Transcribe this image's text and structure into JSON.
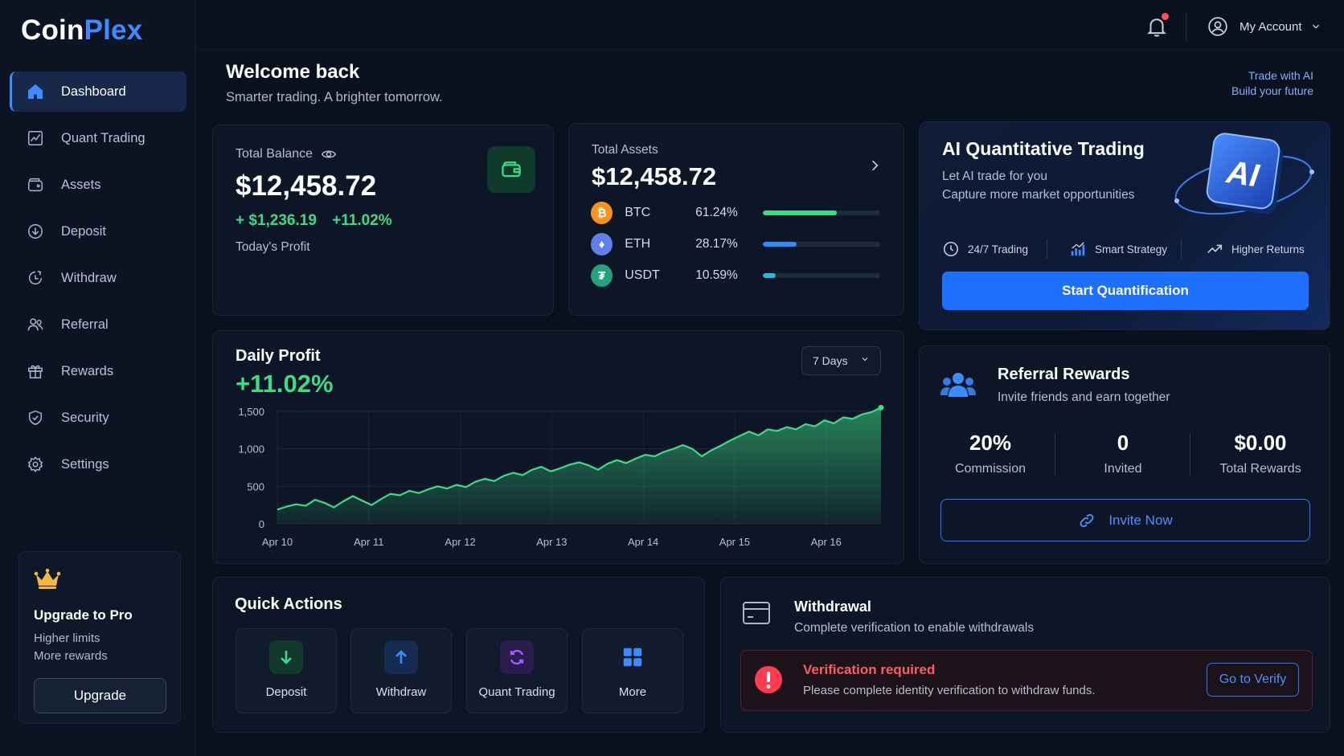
{
  "brand": {
    "name_part1": "Coin",
    "name_part2": "Plex",
    "accent": "#3d8bff"
  },
  "sidebar": {
    "items": [
      {
        "label": "Dashboard",
        "icon": "home-icon",
        "active": true
      },
      {
        "label": "Quant Trading",
        "icon": "chart-icon"
      },
      {
        "label": "Assets",
        "icon": "wallet-icon"
      },
      {
        "label": "Deposit",
        "icon": "arrow-down-circle-icon"
      },
      {
        "label": "Withdraw",
        "icon": "clock-arrow-icon"
      },
      {
        "label": "Referral",
        "icon": "users-icon"
      },
      {
        "label": "Rewards",
        "icon": "gift-icon"
      },
      {
        "label": "Security",
        "icon": "shield-icon"
      },
      {
        "label": "Settings",
        "icon": "gear-icon"
      }
    ],
    "upgrade": {
      "title": "Upgrade to Pro",
      "line1": "Higher limits",
      "line2": "More rewards",
      "button": "Upgrade",
      "icon": "crown-icon"
    }
  },
  "header": {
    "account": "My Account",
    "notification_icon": "bell-icon"
  },
  "welcome": {
    "title": "Welcome back",
    "subtitle": "Smarter trading. A brighter tomorrow.",
    "tagline1": "Trade with AI",
    "tagline2": "Build your future"
  },
  "balance": {
    "label": "Total Balance",
    "value": "$12,458.72",
    "profit_amount": "+ $1,236.19",
    "profit_pct": "+11.02%",
    "profit_label": "Today's Profit"
  },
  "assets": {
    "label": "Total Assets",
    "value": "$12,458.72",
    "rows": [
      {
        "symbol": "BTC",
        "pct": "61.24%",
        "share": 0.6124,
        "color": "#f7931a",
        "glyph": "₿",
        "bar": "#3ddc84"
      },
      {
        "symbol": "ETH",
        "pct": "28.17%",
        "share": 0.2817,
        "color": "#627eea",
        "glyph": "♦",
        "bar": "#2e8bff"
      },
      {
        "symbol": "USDT",
        "pct": "10.59%",
        "share": 0.1059,
        "color": "#26a17b",
        "glyph": "₮",
        "bar": "#29b6d8"
      }
    ]
  },
  "ai": {
    "title": "AI Quantitative Trading",
    "line1": "Let AI trade for you",
    "line2": "Capture more market opportunities",
    "badge": "AI",
    "features": [
      "24/7 Trading",
      "Smart Strategy",
      "Higher Returns"
    ],
    "button": "Start Quantification"
  },
  "daily": {
    "title": "Daily Profit",
    "value": "+11.02%",
    "range": "7 Days"
  },
  "chart_data": {
    "type": "area",
    "y_ticks": [
      "1,500",
      "1,000",
      "500",
      "0"
    ],
    "ylim": [
      0,
      1500
    ],
    "x_labels": [
      "Apr 10",
      "Apr 11",
      "Apr 12",
      "Apr 13",
      "Apr 14",
      "Apr 15",
      "Apr 16"
    ],
    "color": "#3ddc84",
    "values": [
      190,
      230,
      260,
      240,
      320,
      280,
      220,
      300,
      370,
      310,
      250,
      330,
      400,
      380,
      440,
      410,
      460,
      500,
      470,
      520,
      490,
      560,
      600,
      570,
      640,
      680,
      650,
      720,
      760,
      700,
      740,
      790,
      820,
      780,
      720,
      800,
      850,
      810,
      870,
      920,
      900,
      960,
      1000,
      1050,
      1000,
      900,
      980,
      1040,
      1110,
      1170,
      1230,
      1180,
      1260,
      1240,
      1290,
      1260,
      1330,
      1300,
      1380,
      1340,
      1420,
      1400,
      1460,
      1490,
      1550
    ]
  },
  "referral": {
    "title": "Referral Rewards",
    "subtitle": "Invite friends and earn together",
    "icon": "users-icon",
    "stats": [
      {
        "value": "20%",
        "label": "Commission"
      },
      {
        "value": "0",
        "label": "Invited"
      },
      {
        "value": "$0.00",
        "label": "Total Rewards"
      }
    ],
    "button": "Invite Now"
  },
  "quick": {
    "title": "Quick Actions",
    "items": [
      {
        "label": "Deposit",
        "icon": "arrow-down-icon",
        "color": "#3ddc84",
        "bg": "#13392c"
      },
      {
        "label": "Withdraw",
        "icon": "arrow-up-icon",
        "color": "#3d8bff",
        "bg": "#152b52"
      },
      {
        "label": "Quant Trading",
        "icon": "refresh-icon",
        "color": "#a15cff",
        "bg": "#2a1d4d"
      },
      {
        "label": "More",
        "icon": "grid-icon",
        "color": "#3d8bff",
        "bg": "transparent"
      }
    ]
  },
  "withdrawal": {
    "title": "Withdrawal",
    "subtitle": "Complete verification to enable withdrawals",
    "alert_title": "Verification required",
    "alert_text": "Please complete identity verification to withdraw funds.",
    "alert_button": "Go to Verify"
  }
}
